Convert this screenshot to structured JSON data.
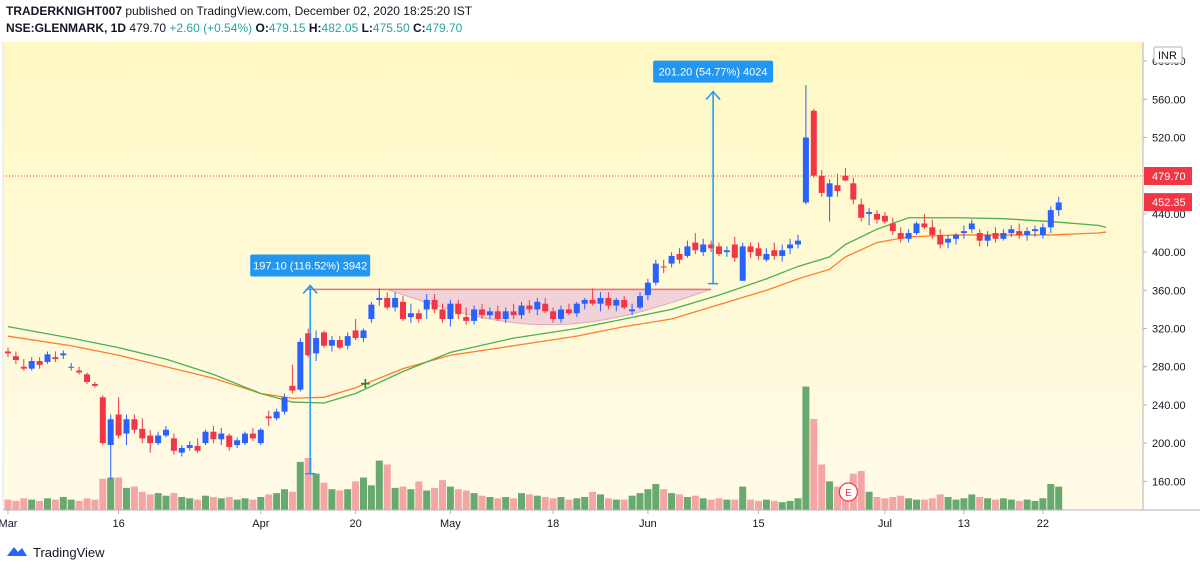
{
  "header": {
    "author": "TRADERKNIGHT007",
    "published_text": "published on TradingView.com, December 02, 2020 18:25:20 IST",
    "symbol": "NSE:GLENMARK, 1D",
    "last": "479.70",
    "change": "+2.60 (+0.54%)",
    "o_label": "O:",
    "o_value": "479.15",
    "h_label": "H:",
    "h_value": "482.05",
    "l_label": "L:",
    "l_value": "475.50",
    "c_label": "C:",
    "c_value": "479.70"
  },
  "footer": {
    "brand": "TradingView"
  },
  "colors": {
    "up": "#2962ff",
    "down": "#f23645",
    "ema_fast": "#4caf50",
    "ema_slow": "#ff7f2a",
    "vol_up": "#4e9a5a",
    "vol_down": "#f4a6a6",
    "bg_top": "#fff8c4",
    "bg_bottom": "#fffbe8",
    "price_line": "#f23645",
    "measure": "#2196f3",
    "cup_fill": "#e8b8d8",
    "rim_line": "#f07070"
  },
  "chart_data": {
    "type": "candlestick",
    "currency": "INR",
    "ylim": [
      130,
      620
    ],
    "y_ticks": [
      160,
      200,
      240,
      280,
      320,
      360,
      400,
      440,
      480,
      520,
      560,
      600
    ],
    "x_labels": [
      {
        "label": "Mar",
        "i": 0
      },
      {
        "label": "16",
        "i": 14
      },
      {
        "label": "Apr",
        "i": 32
      },
      {
        "label": "20",
        "i": 44
      },
      {
        "label": "May",
        "i": 56
      },
      {
        "label": "18",
        "i": 69
      },
      {
        "label": "Jun",
        "i": 81
      },
      {
        "label": "15",
        "i": 95
      },
      {
        "label": "Jul",
        "i": 111
      },
      {
        "label": "13",
        "i": 121
      },
      {
        "label": "22",
        "i": 131
      }
    ],
    "price_labels": [
      {
        "value": 479.7,
        "text": "479.70"
      },
      {
        "value": 452.35,
        "text": "452.35"
      }
    ],
    "candles": [
      {
        "o": 296,
        "h": 300,
        "l": 290,
        "c": 294,
        "v": 8
      },
      {
        "o": 291,
        "h": 296,
        "l": 283,
        "c": 287,
        "v": 7
      },
      {
        "o": 280,
        "h": 288,
        "l": 276,
        "c": 278,
        "v": 9
      },
      {
        "o": 278,
        "h": 290,
        "l": 276,
        "c": 286,
        "v": 8
      },
      {
        "o": 286,
        "h": 290,
        "l": 278,
        "c": 282,
        "v": 7
      },
      {
        "o": 285,
        "h": 296,
        "l": 283,
        "c": 293,
        "v": 9
      },
      {
        "o": 290,
        "h": 296,
        "l": 285,
        "c": 288,
        "v": 8
      },
      {
        "o": 292,
        "h": 297,
        "l": 288,
        "c": 294,
        "v": 10
      },
      {
        "o": 280,
        "h": 284,
        "l": 276,
        "c": 280,
        "v": 8
      },
      {
        "o": 276,
        "h": 280,
        "l": 272,
        "c": 274,
        "v": 7
      },
      {
        "o": 272,
        "h": 274,
        "l": 262,
        "c": 264,
        "v": 9
      },
      {
        "o": 262,
        "h": 264,
        "l": 258,
        "c": 260,
        "v": 8
      },
      {
        "o": 248,
        "h": 250,
        "l": 198,
        "c": 200,
        "v": 24
      },
      {
        "o": 198,
        "h": 230,
        "l": 162,
        "c": 225,
        "v": 25
      },
      {
        "o": 230,
        "h": 248,
        "l": 205,
        "c": 208,
        "v": 25
      },
      {
        "o": 210,
        "h": 230,
        "l": 198,
        "c": 225,
        "v": 17
      },
      {
        "o": 225,
        "h": 230,
        "l": 210,
        "c": 214,
        "v": 18
      },
      {
        "o": 215,
        "h": 226,
        "l": 200,
        "c": 205,
        "v": 14
      },
      {
        "o": 208,
        "h": 214,
        "l": 190,
        "c": 200,
        "v": 12
      },
      {
        "o": 200,
        "h": 212,
        "l": 198,
        "c": 208,
        "v": 13
      },
      {
        "o": 208,
        "h": 218,
        "l": 206,
        "c": 214,
        "v": 11
      },
      {
        "o": 205,
        "h": 210,
        "l": 188,
        "c": 192,
        "v": 13
      },
      {
        "o": 190,
        "h": 198,
        "l": 186,
        "c": 195,
        "v": 10
      },
      {
        "o": 195,
        "h": 202,
        "l": 192,
        "c": 198,
        "v": 9
      },
      {
        "o": 197,
        "h": 205,
        "l": 190,
        "c": 192,
        "v": 8
      },
      {
        "o": 200,
        "h": 214,
        "l": 198,
        "c": 212,
        "v": 11
      },
      {
        "o": 212,
        "h": 218,
        "l": 200,
        "c": 204,
        "v": 10
      },
      {
        "o": 204,
        "h": 216,
        "l": 198,
        "c": 210,
        "v": 9
      },
      {
        "o": 208,
        "h": 210,
        "l": 192,
        "c": 196,
        "v": 10
      },
      {
        "o": 198,
        "h": 206,
        "l": 195,
        "c": 203,
        "v": 8
      },
      {
        "o": 200,
        "h": 212,
        "l": 198,
        "c": 210,
        "v": 9
      },
      {
        "o": 210,
        "h": 216,
        "l": 202,
        "c": 205,
        "v": 8
      },
      {
        "o": 200,
        "h": 216,
        "l": 198,
        "c": 214,
        "v": 10
      },
      {
        "o": 228,
        "h": 234,
        "l": 218,
        "c": 226,
        "v": 12
      },
      {
        "o": 226,
        "h": 236,
        "l": 224,
        "c": 233,
        "v": 13
      },
      {
        "o": 233,
        "h": 252,
        "l": 230,
        "c": 248,
        "v": 16
      },
      {
        "o": 260,
        "h": 282,
        "l": 252,
        "c": 255,
        "v": 14
      },
      {
        "o": 256,
        "h": 310,
        "l": 254,
        "c": 306,
        "v": 37
      },
      {
        "o": 315,
        "h": 320,
        "l": 290,
        "c": 292,
        "v": 40
      },
      {
        "o": 294,
        "h": 318,
        "l": 286,
        "c": 310,
        "v": 28
      },
      {
        "o": 316,
        "h": 318,
        "l": 300,
        "c": 302,
        "v": 21
      },
      {
        "o": 302,
        "h": 312,
        "l": 296,
        "c": 308,
        "v": 16
      },
      {
        "o": 308,
        "h": 312,
        "l": 298,
        "c": 300,
        "v": 15
      },
      {
        "o": 302,
        "h": 316,
        "l": 298,
        "c": 312,
        "v": 16
      },
      {
        "o": 318,
        "h": 330,
        "l": 308,
        "c": 310,
        "v": 22
      },
      {
        "o": 310,
        "h": 320,
        "l": 306,
        "c": 318,
        "v": 25
      },
      {
        "o": 330,
        "h": 348,
        "l": 326,
        "c": 345,
        "v": 19
      },
      {
        "o": 350,
        "h": 362,
        "l": 344,
        "c": 352,
        "v": 38
      },
      {
        "o": 352,
        "h": 358,
        "l": 340,
        "c": 342,
        "v": 35
      },
      {
        "o": 342,
        "h": 358,
        "l": 338,
        "c": 352,
        "v": 17
      },
      {
        "o": 348,
        "h": 354,
        "l": 328,
        "c": 330,
        "v": 18
      },
      {
        "o": 332,
        "h": 346,
        "l": 326,
        "c": 336,
        "v": 16
      },
      {
        "o": 336,
        "h": 340,
        "l": 326,
        "c": 330,
        "v": 22
      },
      {
        "o": 340,
        "h": 356,
        "l": 330,
        "c": 350,
        "v": 15
      },
      {
        "o": 350,
        "h": 356,
        "l": 336,
        "c": 340,
        "v": 17
      },
      {
        "o": 340,
        "h": 346,
        "l": 326,
        "c": 330,
        "v": 23
      },
      {
        "o": 330,
        "h": 350,
        "l": 322,
        "c": 346,
        "v": 18
      },
      {
        "o": 346,
        "h": 350,
        "l": 330,
        "c": 335,
        "v": 16
      },
      {
        "o": 332,
        "h": 342,
        "l": 324,
        "c": 328,
        "v": 15
      },
      {
        "o": 328,
        "h": 344,
        "l": 324,
        "c": 340,
        "v": 13
      },
      {
        "o": 340,
        "h": 346,
        "l": 330,
        "c": 334,
        "v": 11
      },
      {
        "o": 334,
        "h": 342,
        "l": 330,
        "c": 338,
        "v": 10
      },
      {
        "o": 338,
        "h": 344,
        "l": 328,
        "c": 330,
        "v": 9
      },
      {
        "o": 330,
        "h": 342,
        "l": 326,
        "c": 338,
        "v": 10
      },
      {
        "o": 338,
        "h": 346,
        "l": 330,
        "c": 334,
        "v": 9
      },
      {
        "o": 334,
        "h": 348,
        "l": 330,
        "c": 344,
        "v": 13
      },
      {
        "o": 344,
        "h": 350,
        "l": 336,
        "c": 340,
        "v": 12
      },
      {
        "o": 340,
        "h": 352,
        "l": 334,
        "c": 348,
        "v": 11
      },
      {
        "o": 346,
        "h": 352,
        "l": 336,
        "c": 338,
        "v": 10
      },
      {
        "o": 338,
        "h": 342,
        "l": 326,
        "c": 330,
        "v": 9
      },
      {
        "o": 330,
        "h": 344,
        "l": 326,
        "c": 340,
        "v": 10
      },
      {
        "o": 340,
        "h": 346,
        "l": 334,
        "c": 336,
        "v": 8
      },
      {
        "o": 336,
        "h": 348,
        "l": 332,
        "c": 346,
        "v": 9
      },
      {
        "o": 346,
        "h": 352,
        "l": 340,
        "c": 350,
        "v": 10
      },
      {
        "o": 350,
        "h": 362,
        "l": 344,
        "c": 346,
        "v": 14
      },
      {
        "o": 346,
        "h": 358,
        "l": 338,
        "c": 352,
        "v": 12
      },
      {
        "o": 352,
        "h": 358,
        "l": 340,
        "c": 344,
        "v": 9
      },
      {
        "o": 344,
        "h": 352,
        "l": 338,
        "c": 350,
        "v": 8
      },
      {
        "o": 350,
        "h": 354,
        "l": 340,
        "c": 342,
        "v": 8
      },
      {
        "o": 338,
        "h": 346,
        "l": 334,
        "c": 340,
        "v": 11
      },
      {
        "o": 342,
        "h": 358,
        "l": 340,
        "c": 354,
        "v": 13
      },
      {
        "o": 355,
        "h": 372,
        "l": 350,
        "c": 368,
        "v": 16
      },
      {
        "o": 368,
        "h": 392,
        "l": 365,
        "c": 388,
        "v": 20
      },
      {
        "o": 385,
        "h": 392,
        "l": 378,
        "c": 384,
        "v": 16
      },
      {
        "o": 388,
        "h": 400,
        "l": 384,
        "c": 396,
        "v": 13
      },
      {
        "o": 398,
        "h": 404,
        "l": 388,
        "c": 392,
        "v": 12
      },
      {
        "o": 396,
        "h": 412,
        "l": 394,
        "c": 406,
        "v": 10
      },
      {
        "o": 410,
        "h": 420,
        "l": 398,
        "c": 402,
        "v": 11
      },
      {
        "o": 400,
        "h": 414,
        "l": 396,
        "c": 408,
        "v": 9
      },
      {
        "o": 408,
        "h": 412,
        "l": 400,
        "c": 404,
        "v": 8
      },
      {
        "o": 406,
        "h": 410,
        "l": 396,
        "c": 398,
        "v": 9
      },
      {
        "o": 400,
        "h": 406,
        "l": 395,
        "c": 402,
        "v": 8
      },
      {
        "o": 408,
        "h": 416,
        "l": 390,
        "c": 394,
        "v": 8
      },
      {
        "o": 370,
        "h": 410,
        "l": 370,
        "c": 406,
        "v": 18
      },
      {
        "o": 406,
        "h": 410,
        "l": 394,
        "c": 400,
        "v": 8
      },
      {
        "o": 404,
        "h": 410,
        "l": 392,
        "c": 396,
        "v": 7
      },
      {
        "o": 392,
        "h": 404,
        "l": 390,
        "c": 398,
        "v": 8
      },
      {
        "o": 402,
        "h": 410,
        "l": 392,
        "c": 396,
        "v": 7
      },
      {
        "o": 396,
        "h": 408,
        "l": 390,
        "c": 402,
        "v": 6
      },
      {
        "o": 404,
        "h": 414,
        "l": 398,
        "c": 408,
        "v": 7
      },
      {
        "o": 408,
        "h": 418,
        "l": 404,
        "c": 412,
        "v": 9
      },
      {
        "o": 452,
        "h": 575,
        "l": 450,
        "c": 520,
        "v": 95
      },
      {
        "o": 548,
        "h": 550,
        "l": 478,
        "c": 480,
        "v": 70
      },
      {
        "o": 480,
        "h": 486,
        "l": 458,
        "c": 462,
        "v": 35
      },
      {
        "o": 458,
        "h": 476,
        "l": 432,
        "c": 472,
        "v": 22
      },
      {
        "o": 470,
        "h": 482,
        "l": 458,
        "c": 464,
        "v": 18
      },
      {
        "o": 480,
        "h": 488,
        "l": 474,
        "c": 475,
        "v": 15
      },
      {
        "o": 472,
        "h": 478,
        "l": 450,
        "c": 455,
        "v": 28
      },
      {
        "o": 450,
        "h": 456,
        "l": 432,
        "c": 436,
        "v": 30
      },
      {
        "o": 440,
        "h": 446,
        "l": 428,
        "c": 442,
        "v": 14
      },
      {
        "o": 440,
        "h": 444,
        "l": 430,
        "c": 434,
        "v": 10
      },
      {
        "o": 438,
        "h": 442,
        "l": 430,
        "c": 432,
        "v": 9
      },
      {
        "o": 430,
        "h": 436,
        "l": 418,
        "c": 422,
        "v": 10
      },
      {
        "o": 420,
        "h": 426,
        "l": 410,
        "c": 414,
        "v": 11
      },
      {
        "o": 414,
        "h": 424,
        "l": 410,
        "c": 420,
        "v": 9
      },
      {
        "o": 420,
        "h": 432,
        "l": 418,
        "c": 430,
        "v": 8
      },
      {
        "o": 430,
        "h": 440,
        "l": 424,
        "c": 426,
        "v": 8
      },
      {
        "o": 426,
        "h": 434,
        "l": 414,
        "c": 418,
        "v": 9
      },
      {
        "o": 418,
        "h": 424,
        "l": 404,
        "c": 408,
        "v": 12
      },
      {
        "o": 410,
        "h": 418,
        "l": 404,
        "c": 414,
        "v": 10
      },
      {
        "o": 414,
        "h": 420,
        "l": 408,
        "c": 418,
        "v": 8
      },
      {
        "o": 420,
        "h": 428,
        "l": 414,
        "c": 422,
        "v": 9
      },
      {
        "o": 424,
        "h": 434,
        "l": 420,
        "c": 430,
        "v": 12
      },
      {
        "o": 420,
        "h": 424,
        "l": 406,
        "c": 412,
        "v": 10
      },
      {
        "o": 412,
        "h": 422,
        "l": 406,
        "c": 418,
        "v": 9
      },
      {
        "o": 420,
        "h": 426,
        "l": 410,
        "c": 414,
        "v": 8
      },
      {
        "o": 414,
        "h": 424,
        "l": 412,
        "c": 420,
        "v": 9
      },
      {
        "o": 420,
        "h": 428,
        "l": 416,
        "c": 424,
        "v": 8
      },
      {
        "o": 422,
        "h": 430,
        "l": 414,
        "c": 418,
        "v": 7
      },
      {
        "o": 418,
        "h": 426,
        "l": 412,
        "c": 422,
        "v": 8
      },
      {
        "o": 422,
        "h": 428,
        "l": 416,
        "c": 424,
        "v": 7
      },
      {
        "o": 418,
        "h": 430,
        "l": 414,
        "c": 426,
        "v": 9
      },
      {
        "o": 426,
        "h": 448,
        "l": 420,
        "c": 444,
        "v": 20
      },
      {
        "o": 444,
        "h": 458,
        "l": 438,
        "c": 452,
        "v": 18
      }
    ],
    "ema_fast": [
      [
        0,
        322
      ],
      [
        8,
        310
      ],
      [
        14,
        300
      ],
      [
        20,
        288
      ],
      [
        26,
        272
      ],
      [
        32,
        252
      ],
      [
        36,
        243
      ],
      [
        40,
        242
      ],
      [
        44,
        252
      ],
      [
        50,
        275
      ],
      [
        56,
        295
      ],
      [
        64,
        310
      ],
      [
        72,
        320
      ],
      [
        78,
        330
      ],
      [
        84,
        340
      ],
      [
        90,
        355
      ],
      [
        96,
        372
      ],
      [
        100,
        385
      ],
      [
        104,
        395
      ],
      [
        106,
        408
      ],
      [
        110,
        424
      ],
      [
        114,
        436
      ],
      [
        120,
        436
      ],
      [
        126,
        435
      ],
      [
        132,
        432
      ],
      [
        138,
        428
      ],
      [
        139,
        426
      ]
    ],
    "ema_slow": [
      [
        0,
        312
      ],
      [
        8,
        302
      ],
      [
        14,
        292
      ],
      [
        20,
        280
      ],
      [
        26,
        268
      ],
      [
        32,
        252
      ],
      [
        36,
        247
      ],
      [
        40,
        248
      ],
      [
        44,
        258
      ],
      [
        50,
        278
      ],
      [
        56,
        292
      ],
      [
        64,
        302
      ],
      [
        72,
        312
      ],
      [
        78,
        322
      ],
      [
        84,
        330
      ],
      [
        90,
        345
      ],
      [
        96,
        360
      ],
      [
        100,
        372
      ],
      [
        104,
        382
      ],
      [
        106,
        395
      ],
      [
        110,
        410
      ],
      [
        114,
        416
      ],
      [
        120,
        418
      ],
      [
        126,
        418
      ],
      [
        132,
        418
      ],
      [
        138,
        420
      ],
      [
        139,
        421
      ]
    ],
    "cup_rim": {
      "from": 48,
      "to": 89,
      "value": 361
    },
    "cup_bottom_index": 64,
    "cup_bottom_value": 324,
    "measures": [
      {
        "index": 38,
        "low": 168,
        "high": 365,
        "label": "197.10 (116.52%) 3942"
      },
      {
        "index": 89,
        "low": 367,
        "high": 568,
        "label": "201.20 (54.77%) 4024"
      }
    ],
    "crossover": {
      "index": 45,
      "value": 263
    },
    "earnings_marker": {
      "index": 106,
      "text": "E"
    }
  }
}
